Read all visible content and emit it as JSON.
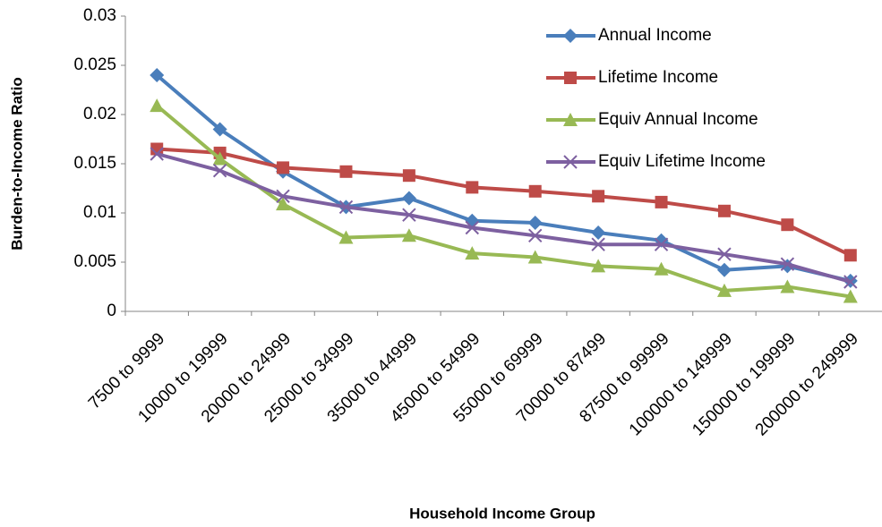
{
  "chart_data": {
    "type": "line",
    "x_label": "Household Income Group",
    "y_label": "Burden-to-Income Ratio",
    "categories": [
      "7500 to 9999",
      "10000 to 19999",
      "20000 to 24999",
      "25000 to 34999",
      "35000 to 44999",
      "45000 to 54999",
      "55000 to 69999",
      "70000 to 87499",
      "87500 to 99999",
      "100000 to 149999",
      "150000 to 199999",
      "200000 to 249999"
    ],
    "series": [
      {
        "name": "Annual Income",
        "color": "#4a7ebb",
        "marker": "diamond",
        "values": [
          0.024,
          0.0185,
          0.0142,
          0.0106,
          0.0115,
          0.0092,
          0.009,
          0.008,
          0.0072,
          0.0042,
          0.0046,
          0.0031
        ]
      },
      {
        "name": "Lifetime Income",
        "color": "#be4b48",
        "marker": "square",
        "values": [
          0.0165,
          0.0161,
          0.0146,
          0.0142,
          0.0138,
          0.0126,
          0.0122,
          0.0117,
          0.0111,
          0.0102,
          0.0088,
          0.0057
        ]
      },
      {
        "name": "Equiv Annual Income",
        "color": "#98b954",
        "marker": "triangle",
        "values": [
          0.0209,
          0.0155,
          0.0109,
          0.0075,
          0.0077,
          0.0059,
          0.0055,
          0.0046,
          0.0043,
          0.0021,
          0.0025,
          0.0015
        ]
      },
      {
        "name": "Equiv Lifetime Income",
        "color": "#7d60a0",
        "marker": "x",
        "values": [
          0.016,
          0.0143,
          0.0117,
          0.0106,
          0.0098,
          0.0085,
          0.0077,
          0.0068,
          0.0068,
          0.0058,
          0.0048,
          0.003
        ]
      }
    ],
    "ylim": [
      0,
      0.03
    ],
    "yticks": [
      0,
      0.005,
      0.01,
      0.015,
      0.02,
      0.025,
      0.03
    ],
    "grid": false,
    "legend": "top-right"
  }
}
